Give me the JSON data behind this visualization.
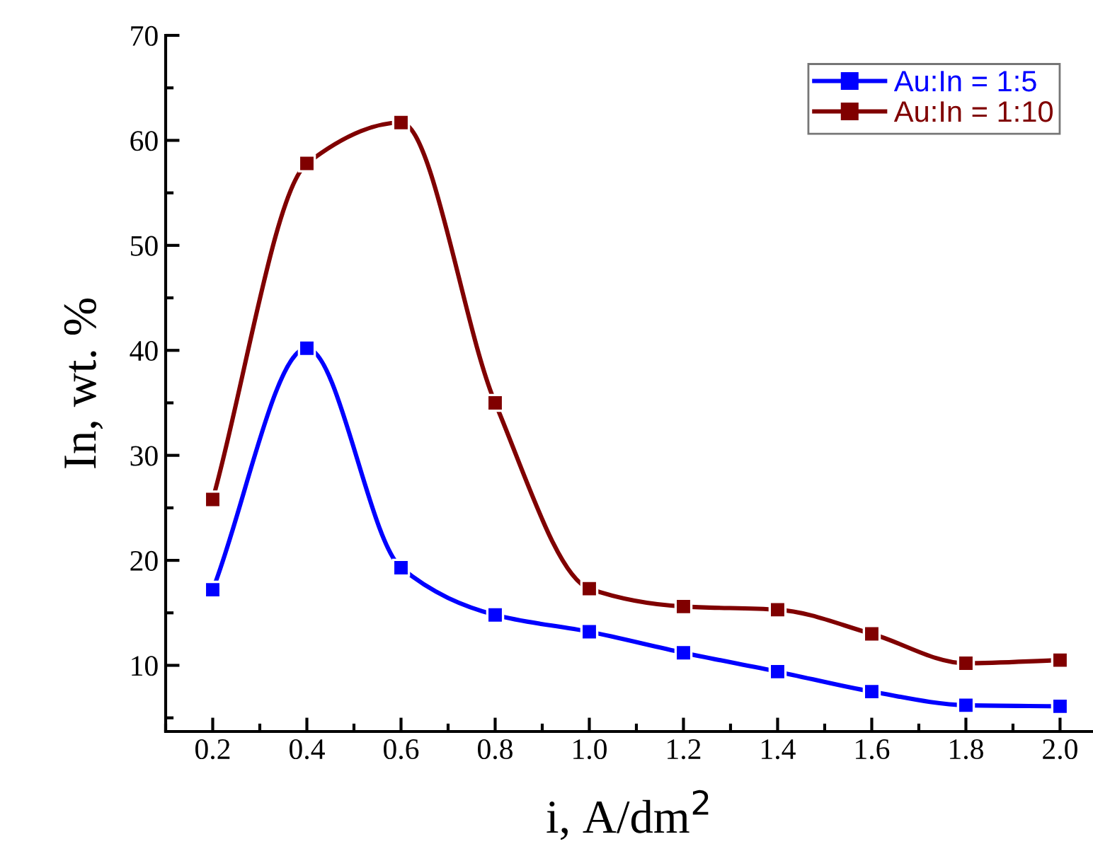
{
  "chart_data": {
    "type": "line",
    "xlabel": "i, A/dm$^{2}$",
    "ylabel": "In, wt. %",
    "x": [
      0.2,
      0.4,
      0.6,
      0.8,
      1.0,
      1.2,
      1.4,
      1.6,
      1.8,
      2.0
    ],
    "series": [
      {
        "name": "Au:In = 1:5",
        "color": "#0000ff",
        "values": [
          17.2,
          40.2,
          19.3,
          14.8,
          13.2,
          11.2,
          9.4,
          7.5,
          6.2,
          6.1
        ]
      },
      {
        "name": "Au:In = 1:10",
        "color": "#800000",
        "values": [
          25.8,
          57.8,
          61.7,
          35.0,
          17.3,
          15.6,
          15.3,
          13.0,
          10.2,
          10.5
        ]
      }
    ],
    "xlim": [
      0.1,
      2.07
    ],
    "ylim": [
      3.7,
      70
    ],
    "xticks": [
      {
        "value": 0.2,
        "label": "0.2"
      },
      {
        "value": 0.4,
        "label": "0.4"
      },
      {
        "value": 0.6,
        "label": "0.6"
      },
      {
        "value": 0.8,
        "label": "0.8"
      },
      {
        "value": 1.0,
        "label": "1.0"
      },
      {
        "value": 1.2,
        "label": "1.2"
      },
      {
        "value": 1.4,
        "label": "1.4"
      },
      {
        "value": 1.6,
        "label": "1.6"
      },
      {
        "value": 1.8,
        "label": "1.8"
      },
      {
        "value": 2.0,
        "label": "2.0"
      }
    ],
    "yticks": [
      10,
      20,
      30,
      40,
      50,
      60,
      70
    ],
    "marker": "square",
    "line_style": "solid",
    "grid": false,
    "legend": "top right"
  }
}
